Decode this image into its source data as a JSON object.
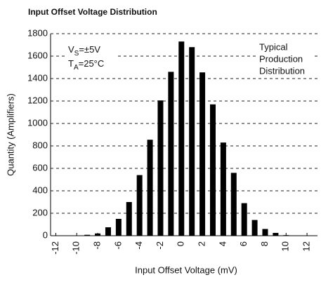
{
  "chart_data": {
    "type": "bar",
    "title": "Input Offset Voltage Distribution",
    "x_label": "Input Offset Voltage (mV)",
    "y_label": "Quantity (Amplifiers)",
    "annotations": [
      {
        "text": "V",
        "sub": "S",
        "rest": "=±5V"
      },
      {
        "text": "T",
        "sub": "A",
        "rest": "=25°C"
      }
    ],
    "note_lines": [
      "Typical",
      "Production",
      "Distribution"
    ],
    "x": [
      -10,
      -9,
      -8,
      -7,
      -6,
      -5,
      -4,
      -3,
      -2,
      -1,
      0,
      1,
      2,
      3,
      4,
      5,
      6,
      7,
      8,
      9,
      10
    ],
    "values": [
      3,
      8,
      20,
      75,
      150,
      300,
      540,
      855,
      1205,
      1460,
      1730,
      1680,
      1455,
      1170,
      830,
      560,
      290,
      140,
      60,
      25,
      5
    ],
    "color": "#000000",
    "xlim": [
      -12.5,
      13
    ],
    "xticks": [
      -12,
      -10,
      -8,
      -6,
      -4,
      -2,
      0,
      2,
      4,
      6,
      8,
      10,
      12
    ],
    "ylim": [
      0,
      1800
    ],
    "yticks": [
      0,
      200,
      400,
      600,
      800,
      1000,
      1200,
      1400,
      1600,
      1800
    ],
    "grid": true
  }
}
